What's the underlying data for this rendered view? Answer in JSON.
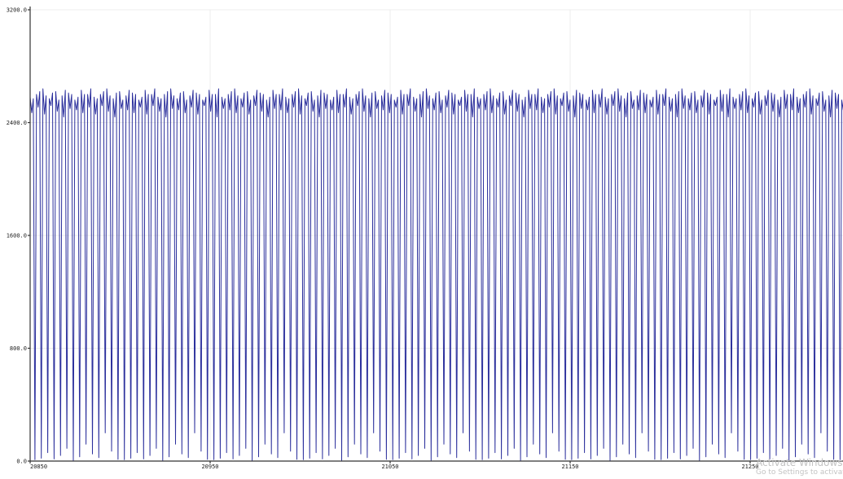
{
  "chart_data": {
    "type": "line",
    "title": "",
    "xlabel": "",
    "ylabel": "",
    "xlim": [
      20850,
      21350
    ],
    "ylim": [
      0,
      3200
    ],
    "x_ticks": [
      20850,
      20950,
      21050,
      21150,
      21250
    ],
    "x_tick_labels": [
      "20850",
      "20950",
      "21050",
      "21150",
      "21250"
    ],
    "y_ticks": [
      0,
      800,
      1600,
      2400,
      3200
    ],
    "y_tick_labels": [
      "0.0",
      "800.0",
      "1600.0",
      "2400.0",
      "3200.0"
    ],
    "grid": true,
    "series": [
      {
        "color": "#2b2f9c",
        "x_start": 20850,
        "x_step": 1,
        "pattern_period": 3.55,
        "peak_high": [
          2580,
          2600,
          2640,
          2570,
          2620,
          2590,
          2610,
          2560,
          2630,
          2600
        ],
        "peak_mid": [
          2470,
          2510,
          2460,
          2520,
          2480,
          2440,
          2500,
          2490
        ],
        "troughs": [
          10,
          20,
          60,
          15,
          40,
          90,
          5,
          30,
          120,
          50,
          25,
          200,
          70,
          12
        ]
      }
    ]
  },
  "watermark": {
    "title": "Activate Windows",
    "subtitle": "Go to Settings to activate W"
  }
}
